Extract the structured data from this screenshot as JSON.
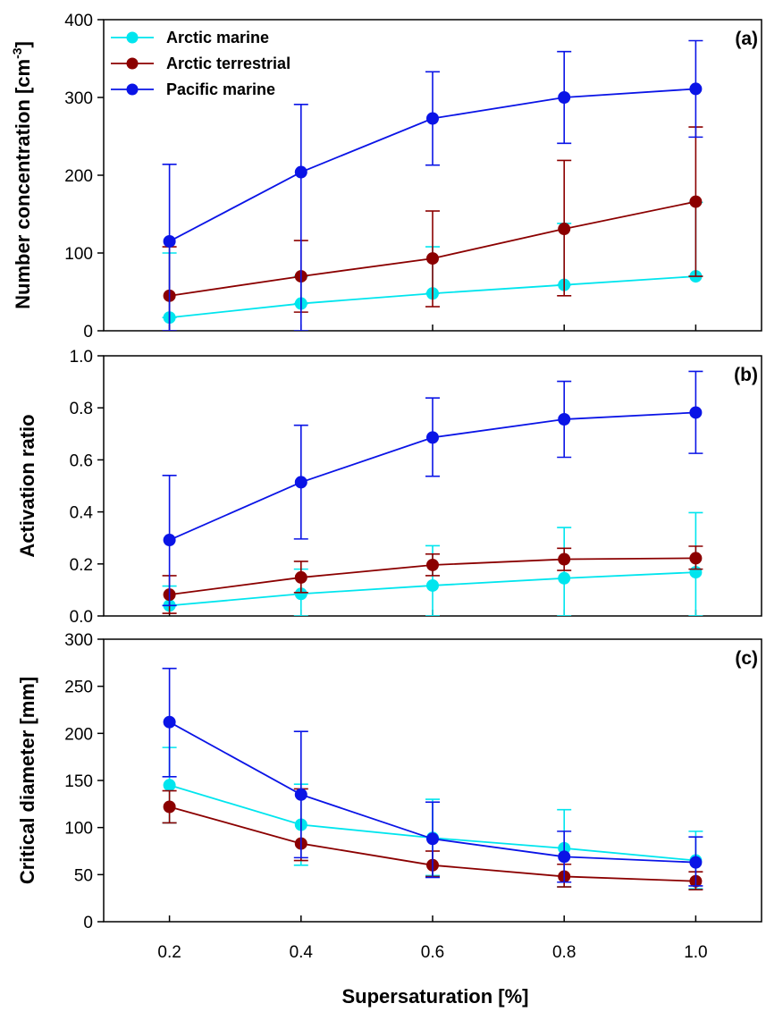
{
  "chart_data": [
    {
      "type": "line",
      "panel_label": "(a)",
      "ylabel": "Number concentration [cm",
      "ylabel_sup": "-3",
      "ylabel_end": "]",
      "ylim": [
        0,
        400
      ],
      "yticks": [
        0,
        100,
        200,
        300,
        400
      ],
      "ytick_labels": [
        "0",
        "100",
        "200",
        "300",
        "400"
      ],
      "xlim": [
        0.1,
        1.1
      ],
      "xticks": [
        0.2,
        0.4,
        0.6,
        0.8,
        1.0
      ],
      "legend_placement": "top-left",
      "x": [
        0.2,
        0.4,
        0.6,
        0.8,
        1.0
      ],
      "series": [
        {
          "name": "Arctic marine",
          "color": "#00e5ee",
          "values": [
            17,
            35,
            48,
            59,
            70
          ],
          "err_low": [
            17,
            35,
            48,
            59,
            70
          ],
          "err_high": [
            100,
            70,
            108,
            138,
            165
          ]
        },
        {
          "name": "Arctic terrestrial",
          "color": "#8b0000",
          "values": [
            45,
            70,
            93,
            131,
            166
          ],
          "err_low": [
            0,
            24,
            31,
            45,
            70
          ],
          "err_high": [
            108,
            116,
            154,
            219,
            262
          ]
        },
        {
          "name": "Pacific marine",
          "color": "#0a14e6",
          "values": [
            115,
            204,
            273,
            300,
            311
          ],
          "err_low": [
            0,
            0,
            213,
            241,
            249
          ],
          "err_high": [
            214,
            291,
            333,
            359,
            373
          ]
        }
      ]
    },
    {
      "type": "line",
      "panel_label": "(b)",
      "ylabel": "Activation ratio",
      "ylim": [
        0,
        1.0
      ],
      "yticks": [
        0,
        0.2,
        0.4,
        0.6,
        0.8,
        1.0
      ],
      "ytick_labels": [
        "0.0",
        "0.2",
        "0.4",
        "0.6",
        "0.8",
        "1.0"
      ],
      "xlim": [
        0.1,
        1.1
      ],
      "xticks": [
        0.2,
        0.4,
        0.6,
        0.8,
        1.0
      ],
      "x": [
        0.2,
        0.4,
        0.6,
        0.8,
        1.0
      ],
      "series": [
        {
          "name": "Arctic marine",
          "color": "#00e5ee",
          "values": [
            0.04,
            0.085,
            0.117,
            0.145,
            0.168
          ],
          "err_low": [
            0.04,
            0.0,
            0.0,
            0.0,
            0.0
          ],
          "err_high": [
            0.115,
            0.18,
            0.27,
            0.34,
            0.397
          ]
        },
        {
          "name": "Arctic terrestrial",
          "color": "#8b0000",
          "values": [
            0.082,
            0.148,
            0.196,
            0.218,
            0.222
          ],
          "err_low": [
            0.01,
            0.09,
            0.155,
            0.175,
            0.18
          ],
          "err_high": [
            0.155,
            0.21,
            0.238,
            0.26,
            0.268
          ]
        },
        {
          "name": "Pacific marine",
          "color": "#0a14e6",
          "values": [
            0.292,
            0.514,
            0.686,
            0.756,
            0.782
          ],
          "err_low": [
            0.04,
            0.296,
            0.537,
            0.61,
            0.625
          ],
          "err_high": [
            0.54,
            0.733,
            0.838,
            0.902,
            0.94
          ]
        }
      ]
    },
    {
      "type": "line",
      "panel_label": "(c)",
      "ylabel": "Critical diameter [mm]",
      "xlabel": "Supersaturation [%]",
      "ylim": [
        0,
        300
      ],
      "yticks": [
        0,
        50,
        100,
        150,
        200,
        250,
        300
      ],
      "ytick_labels": [
        "0",
        "50",
        "100",
        "150",
        "200",
        "250",
        "300"
      ],
      "xlim": [
        0.1,
        1.1
      ],
      "xticks": [
        0.2,
        0.4,
        0.6,
        0.8,
        1.0
      ],
      "xtick_labels": [
        "0.2",
        "0.4",
        "0.6",
        "0.8",
        "1.0"
      ],
      "x": [
        0.2,
        0.4,
        0.6,
        0.8,
        1.0
      ],
      "series": [
        {
          "name": "Arctic marine",
          "color": "#00e5ee",
          "values": [
            145,
            103,
            89,
            78,
            65
          ],
          "err_low": [
            105,
            60,
            49,
            37,
            35
          ],
          "err_high": [
            185,
            146,
            130,
            119,
            96
          ]
        },
        {
          "name": "Arctic terrestrial",
          "color": "#8b0000",
          "values": [
            122,
            83,
            60,
            48,
            43
          ],
          "err_low": [
            105,
            65,
            48,
            37,
            34
          ],
          "err_high": [
            139,
            141,
            75,
            61,
            53
          ]
        },
        {
          "name": "Pacific marine",
          "color": "#0a14e6",
          "values": [
            212,
            135,
            88,
            69,
            63
          ],
          "err_low": [
            154,
            68,
            47,
            42,
            38
          ],
          "err_high": [
            269,
            202,
            127,
            96,
            90
          ]
        }
      ]
    }
  ]
}
